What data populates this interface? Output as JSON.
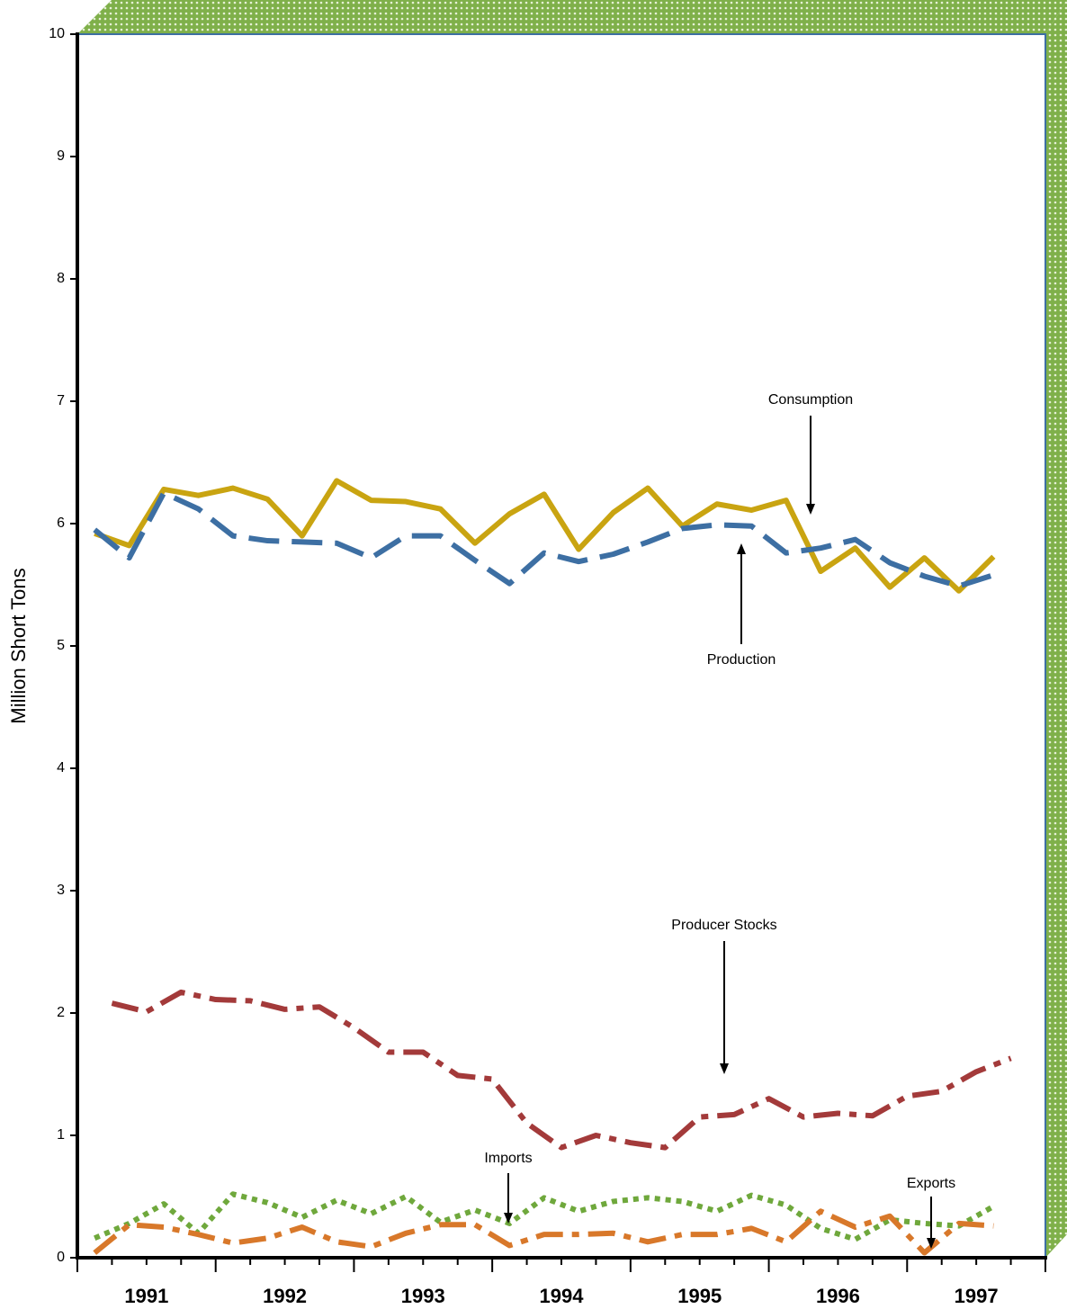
{
  "chart_data": {
    "type": "line",
    "y_label": "Million Short Tons",
    "xlim": [
      1991,
      1998
    ],
    "xticks": [
      {
        "value": 1991.5,
        "label": "1991"
      },
      {
        "value": 1992.5,
        "label": "1992"
      },
      {
        "value": 1993.5,
        "label": "1993"
      },
      {
        "value": 1994.5,
        "label": "1994"
      },
      {
        "value": 1995.5,
        "label": "1995"
      },
      {
        "value": 1996.5,
        "label": "1996"
      },
      {
        "value": 1997.5,
        "label": "1997"
      }
    ],
    "ylim": [
      0,
      10
    ],
    "yticks": [
      0,
      1,
      2,
      3,
      4,
      5,
      6,
      7,
      8,
      9,
      10
    ],
    "series": [
      {
        "name": "Consumption",
        "color": "#c9a411",
        "style": "solid",
        "x": [
          1991.125,
          1991.375,
          1991.625,
          1991.875,
          1992.125,
          1992.375,
          1992.625,
          1992.875,
          1993.125,
          1993.375,
          1993.625,
          1993.875,
          1994.125,
          1994.375,
          1994.625,
          1994.875,
          1995.125,
          1995.375,
          1995.625,
          1995.875,
          1996.125,
          1996.375,
          1996.625,
          1996.875,
          1997.125,
          1997.375,
          1997.625
        ],
        "values": [
          5.92,
          5.82,
          6.28,
          6.23,
          6.29,
          6.2,
          5.9,
          6.35,
          6.19,
          6.18,
          6.12,
          5.84,
          6.08,
          6.24,
          5.79,
          6.09,
          6.29,
          5.98,
          6.16,
          6.11,
          6.19,
          5.61,
          5.8,
          5.48,
          5.72,
          5.45,
          5.73
        ]
      },
      {
        "name": "Production",
        "color": "#3d6fa3",
        "style": "dashed",
        "x": [
          1991.125,
          1991.375,
          1991.625,
          1991.875,
          1992.125,
          1992.375,
          1992.625,
          1992.875,
          1993.125,
          1993.375,
          1993.625,
          1993.875,
          1994.125,
          1994.375,
          1994.625,
          1994.875,
          1995.125,
          1995.375,
          1995.625,
          1995.875,
          1996.125,
          1996.375,
          1996.625,
          1996.875,
          1997.125,
          1997.375,
          1997.625
        ],
        "values": [
          5.95,
          5.72,
          6.25,
          6.12,
          5.9,
          5.86,
          5.85,
          5.84,
          5.72,
          5.9,
          5.9,
          5.7,
          5.51,
          5.76,
          5.69,
          5.75,
          5.85,
          5.96,
          5.99,
          5.98,
          5.76,
          5.8,
          5.87,
          5.68,
          5.57,
          5.49,
          5.58
        ]
      },
      {
        "name": "Producer Stocks",
        "color": "#a33a3a",
        "style": "dashdot",
        "x": [
          1991.25,
          1991.5,
          1991.75,
          1992.0,
          1992.25,
          1992.5,
          1992.75,
          1993.0,
          1993.25,
          1993.5,
          1993.75,
          1994.0,
          1994.25,
          1994.5,
          1994.75,
          1995.0,
          1995.25,
          1995.5,
          1995.75,
          1996.0,
          1996.25,
          1996.5,
          1996.75,
          1997.0,
          1997.25,
          1997.5,
          1997.75
        ],
        "values": [
          2.08,
          2.01,
          2.17,
          2.11,
          2.1,
          2.03,
          2.05,
          1.88,
          1.68,
          1.68,
          1.49,
          1.46,
          1.1,
          0.9,
          1.0,
          0.94,
          0.9,
          1.15,
          1.17,
          1.3,
          1.15,
          1.18,
          1.16,
          1.32,
          1.36,
          1.52,
          1.63
        ]
      },
      {
        "name": "Imports",
        "color": "#6fa83c",
        "style": "dotted",
        "x": [
          1991.125,
          1991.375,
          1991.625,
          1991.875,
          1992.125,
          1992.375,
          1992.625,
          1992.875,
          1993.125,
          1993.375,
          1993.625,
          1993.875,
          1994.125,
          1994.375,
          1994.625,
          1994.875,
          1995.125,
          1995.375,
          1995.625,
          1995.875,
          1996.125,
          1996.375,
          1996.625,
          1996.875,
          1997.125,
          1997.375,
          1997.625
        ],
        "values": [
          0.16,
          0.28,
          0.44,
          0.2,
          0.52,
          0.45,
          0.33,
          0.47,
          0.36,
          0.5,
          0.29,
          0.39,
          0.28,
          0.49,
          0.38,
          0.46,
          0.49,
          0.46,
          0.38,
          0.51,
          0.43,
          0.24,
          0.15,
          0.31,
          0.28,
          0.26,
          0.42
        ]
      },
      {
        "name": "Exports",
        "color": "#d8782a",
        "style": "dashdot",
        "x": [
          1991.125,
          1991.375,
          1991.625,
          1991.875,
          1992.125,
          1992.375,
          1992.625,
          1992.875,
          1993.125,
          1993.375,
          1993.625,
          1993.875,
          1994.125,
          1994.375,
          1994.625,
          1994.875,
          1995.125,
          1995.375,
          1995.625,
          1995.875,
          1996.125,
          1996.375,
          1996.625,
          1996.875,
          1997.125,
          1997.375,
          1997.625
        ],
        "values": [
          0.04,
          0.27,
          0.25,
          0.19,
          0.12,
          0.16,
          0.25,
          0.13,
          0.09,
          0.2,
          0.27,
          0.27,
          0.1,
          0.19,
          0.19,
          0.2,
          0.13,
          0.19,
          0.19,
          0.24,
          0.13,
          0.38,
          0.25,
          0.34,
          0.04,
          0.28,
          0.26
        ]
      }
    ]
  }
}
